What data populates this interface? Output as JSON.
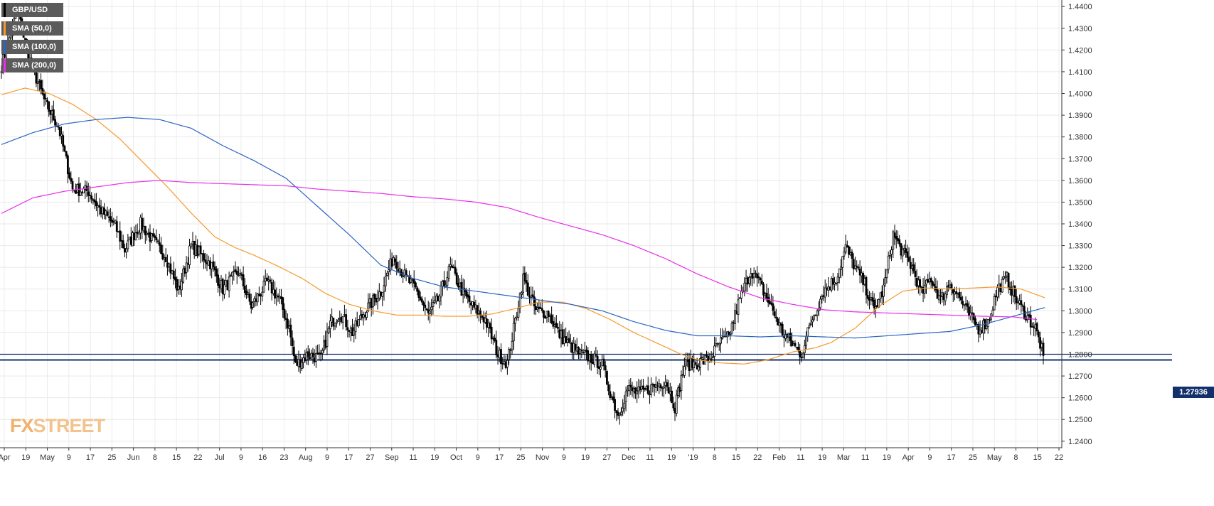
{
  "chart_data": {
    "type": "candlestick",
    "title": "",
    "xlabel": "",
    "ylabel": "",
    "ylim": [
      1.237,
      1.443
    ],
    "y_ticks": [
      1.44,
      1.43,
      1.42,
      1.41,
      1.4,
      1.39,
      1.38,
      1.37,
      1.36,
      1.35,
      1.34,
      1.33,
      1.32,
      1.31,
      1.3,
      1.29,
      1.28,
      1.27,
      1.26,
      1.25,
      1.24
    ],
    "x_ticks": [
      "Apr",
      "19",
      "May",
      "9",
      "17",
      "25",
      "Jun",
      "8",
      "15",
      "22",
      "Jul",
      "9",
      "16",
      "23",
      "Aug",
      "9",
      "17",
      "27",
      "Sep",
      "11",
      "19",
      "Oct",
      "9",
      "17",
      "25",
      "Nov",
      "9",
      "19",
      "27",
      "Dec",
      "11",
      "19",
      "'19",
      "8",
      "15",
      "22",
      "Feb",
      "11",
      "19",
      "Mar",
      "11",
      "19",
      "Apr",
      "9",
      "17",
      "25",
      "May",
      "8",
      "15",
      "22"
    ],
    "grid": true,
    "legend_position": "top-left",
    "current_price": "1.27936",
    "horizontal_levels": [
      1.28,
      1.2774
    ],
    "series": [
      {
        "name": "GBP/USD",
        "color": "#000000",
        "type": "candlestick"
      },
      {
        "name": "SMA (50,0)",
        "color": "#f59a2e",
        "type": "line",
        "anchors": [
          [
            0,
            1.3994
          ],
          [
            15,
            1.4025
          ],
          [
            30,
            1.4
          ],
          [
            45,
            1.395
          ],
          [
            60,
            1.388
          ],
          [
            75,
            1.379
          ],
          [
            90,
            1.368
          ],
          [
            105,
            1.357
          ],
          [
            120,
            1.345
          ],
          [
            135,
            1.334
          ],
          [
            148,
            1.329
          ],
          [
            160,
            1.3255
          ],
          [
            175,
            1.3205
          ],
          [
            190,
            1.315
          ],
          [
            205,
            1.308
          ],
          [
            220,
            1.303
          ],
          [
            235,
            1.3
          ],
          [
            250,
            1.298
          ],
          [
            265,
            1.298
          ],
          [
            280,
            1.2975
          ],
          [
            295,
            1.2975
          ],
          [
            310,
            1.2985
          ],
          [
            325,
            1.301
          ],
          [
            340,
            1.304
          ],
          [
            355,
            1.304
          ],
          [
            370,
            1.301
          ],
          [
            385,
            1.296
          ],
          [
            400,
            1.29
          ],
          [
            415,
            1.285
          ],
          [
            430,
            1.28
          ],
          [
            440,
            1.2775
          ],
          [
            455,
            1.276
          ],
          [
            470,
            1.2755
          ],
          [
            485,
            1.2775
          ],
          [
            500,
            1.281
          ],
          [
            515,
            1.283
          ],
          [
            525,
            1.2855
          ],
          [
            540,
            1.292
          ],
          [
            555,
            1.302
          ],
          [
            570,
            1.309
          ],
          [
            585,
            1.3105
          ],
          [
            600,
            1.31
          ],
          [
            615,
            1.3105
          ],
          [
            630,
            1.311
          ],
          [
            645,
            1.31
          ],
          [
            660,
            1.306
          ]
        ]
      },
      {
        "name": "SMA (100,0)",
        "color": "#2b64c1",
        "type": "line",
        "anchors": [
          [
            0,
            1.3765
          ],
          [
            20,
            1.382
          ],
          [
            40,
            1.386
          ],
          [
            60,
            1.388
          ],
          [
            80,
            1.389
          ],
          [
            100,
            1.388
          ],
          [
            120,
            1.384
          ],
          [
            140,
            1.376
          ],
          [
            160,
            1.369
          ],
          [
            180,
            1.361
          ],
          [
            200,
            1.348
          ],
          [
            220,
            1.335
          ],
          [
            240,
            1.321
          ],
          [
            260,
            1.315
          ],
          [
            280,
            1.311
          ],
          [
            300,
            1.309
          ],
          [
            320,
            1.307
          ],
          [
            340,
            1.305
          ],
          [
            360,
            1.303
          ],
          [
            380,
            1.3
          ],
          [
            400,
            1.295
          ],
          [
            420,
            1.291
          ],
          [
            440,
            1.2885
          ],
          [
            460,
            1.2885
          ],
          [
            480,
            1.288
          ],
          [
            500,
            1.2885
          ],
          [
            520,
            1.288
          ],
          [
            540,
            1.2875
          ],
          [
            560,
            1.2885
          ],
          [
            580,
            1.2895
          ],
          [
            600,
            1.2905
          ],
          [
            620,
            1.2935
          ],
          [
            640,
            1.2975
          ],
          [
            660,
            1.3015
          ]
        ]
      },
      {
        "name": "SMA (200,0)",
        "color": "#e82ee8",
        "type": "line",
        "anchors": [
          [
            0,
            1.3448
          ],
          [
            20,
            1.352
          ],
          [
            40,
            1.355
          ],
          [
            60,
            1.357
          ],
          [
            80,
            1.359
          ],
          [
            100,
            1.36
          ],
          [
            120,
            1.359
          ],
          [
            140,
            1.3585
          ],
          [
            160,
            1.358
          ],
          [
            180,
            1.3575
          ],
          [
            200,
            1.356
          ],
          [
            220,
            1.355
          ],
          [
            240,
            1.354
          ],
          [
            260,
            1.3525
          ],
          [
            280,
            1.3515
          ],
          [
            300,
            1.35
          ],
          [
            320,
            1.3475
          ],
          [
            340,
            1.343
          ],
          [
            360,
            1.339
          ],
          [
            380,
            1.335
          ],
          [
            400,
            1.33
          ],
          [
            420,
            1.324
          ],
          [
            440,
            1.317
          ],
          [
            460,
            1.311
          ],
          [
            480,
            1.306
          ],
          [
            500,
            1.303
          ],
          [
            520,
            1.3005
          ],
          [
            540,
            1.2995
          ],
          [
            560,
            1.299
          ],
          [
            580,
            1.2985
          ],
          [
            600,
            1.298
          ],
          [
            620,
            1.2975
          ],
          [
            640,
            1.2972
          ],
          [
            655,
            1.296
          ]
        ]
      }
    ],
    "price_path": [
      [
        0,
        1.413
      ],
      [
        10,
        1.438
      ],
      [
        18,
        1.415
      ],
      [
        28,
        1.395
      ],
      [
        36,
        1.385
      ],
      [
        45,
        1.356
      ],
      [
        55,
        1.355
      ],
      [
        62,
        1.347
      ],
      [
        72,
        1.339
      ],
      [
        78,
        1.328
      ],
      [
        88,
        1.34
      ],
      [
        95,
        1.333
      ],
      [
        104,
        1.325
      ],
      [
        112,
        1.309
      ],
      [
        120,
        1.33
      ],
      [
        132,
        1.322
      ],
      [
        140,
        1.31
      ],
      [
        150,
        1.318
      ],
      [
        158,
        1.302
      ],
      [
        168,
        1.313
      ],
      [
        176,
        1.305
      ],
      [
        182,
        1.292
      ],
      [
        186,
        1.275
      ],
      [
        194,
        1.28
      ],
      [
        202,
        1.278
      ],
      [
        208,
        1.294
      ],
      [
        214,
        1.299
      ],
      [
        222,
        1.29
      ],
      [
        230,
        1.3
      ],
      [
        240,
        1.309
      ],
      [
        248,
        1.325
      ],
      [
        256,
        1.315
      ],
      [
        262,
        1.31
      ],
      [
        270,
        1.298
      ],
      [
        276,
        1.305
      ],
      [
        284,
        1.32
      ],
      [
        292,
        1.308
      ],
      [
        298,
        1.302
      ],
      [
        306,
        1.296
      ],
      [
        314,
        1.28
      ],
      [
        320,
        1.276
      ],
      [
        330,
        1.315
      ],
      [
        338,
        1.3
      ],
      [
        346,
        1.299
      ],
      [
        352,
        1.29
      ],
      [
        358,
        1.285
      ],
      [
        366,
        1.28
      ],
      [
        374,
        1.278
      ],
      [
        380,
        1.275
      ],
      [
        384,
        1.265
      ],
      [
        390,
        1.252
      ],
      [
        396,
        1.264
      ],
      [
        404,
        1.262
      ],
      [
        412,
        1.265
      ],
      [
        420,
        1.268
      ],
      [
        426,
        1.256
      ],
      [
        432,
        1.275
      ],
      [
        440,
        1.276
      ],
      [
        448,
        1.278
      ],
      [
        454,
        1.285
      ],
      [
        460,
        1.288
      ],
      [
        466,
        1.303
      ],
      [
        474,
        1.319
      ],
      [
        480,
        1.312
      ],
      [
        488,
        1.3
      ],
      [
        494,
        1.29
      ],
      [
        500,
        1.285
      ],
      [
        506,
        1.28
      ],
      [
        512,
        1.295
      ],
      [
        520,
        1.309
      ],
      [
        528,
        1.315
      ],
      [
        534,
        1.329
      ],
      [
        540,
        1.32
      ],
      [
        546,
        1.312
      ],
      [
        552,
        1.3
      ],
      [
        558,
        1.31
      ],
      [
        564,
        1.335
      ],
      [
        570,
        1.327
      ],
      [
        576,
        1.32
      ],
      [
        582,
        1.308
      ],
      [
        588,
        1.315
      ],
      [
        594,
        1.305
      ],
      [
        600,
        1.313
      ],
      [
        606,
        1.306
      ],
      [
        612,
        1.298
      ],
      [
        618,
        1.292
      ],
      [
        624,
        1.295
      ],
      [
        630,
        1.31
      ],
      [
        636,
        1.315
      ],
      [
        642,
        1.305
      ],
      [
        648,
        1.298
      ],
      [
        654,
        1.292
      ],
      [
        659,
        1.28
      ]
    ],
    "candles": {
      "count": 660,
      "first_open": 1.41,
      "last_close": 1.2794
    }
  }
}
